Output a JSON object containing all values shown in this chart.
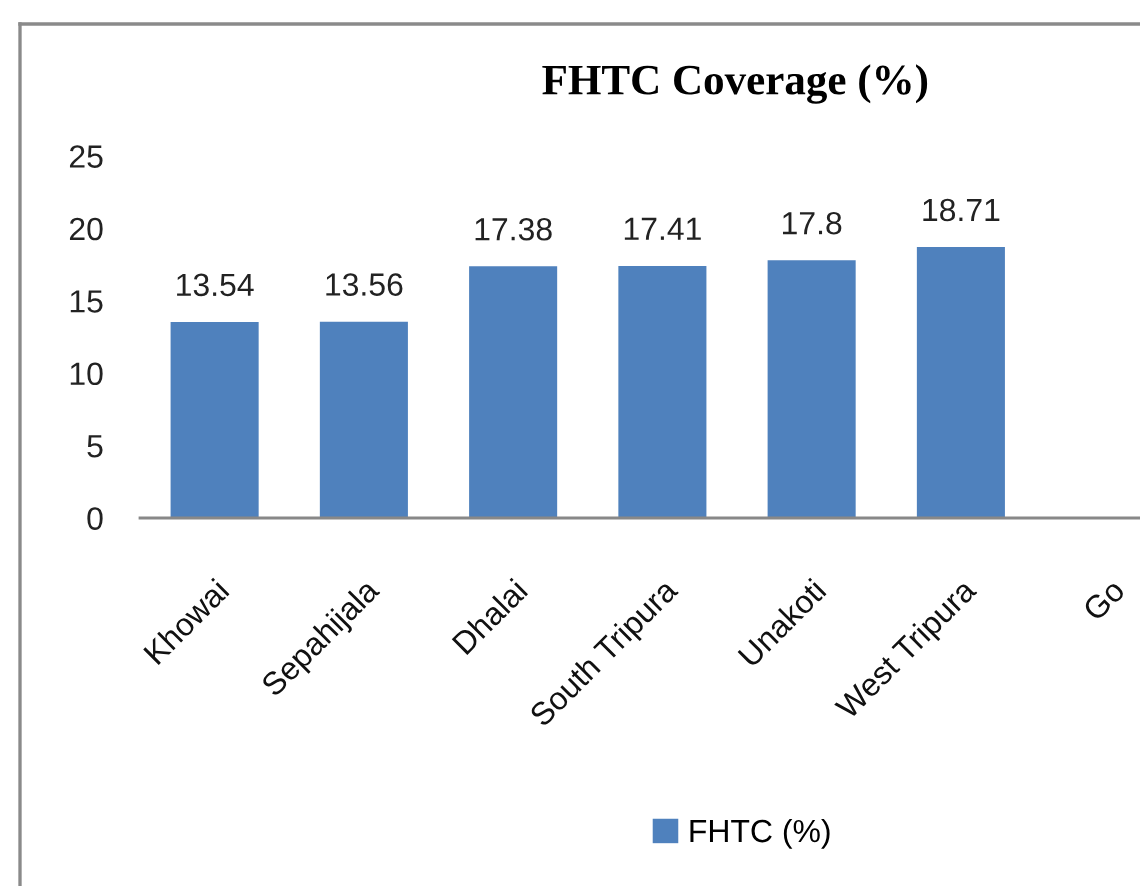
{
  "chart_data": {
    "type": "bar",
    "title": "FHTC Coverage (%)",
    "categories": [
      "Khowai",
      "Sepahijala",
      "Dhalai",
      "South Tripura",
      "Unakoti",
      "West Tripura",
      "Go"
    ],
    "series": [
      {
        "name": "FHTC (%)",
        "color": "#4f81bd",
        "values": [
          13.54,
          13.56,
          17.38,
          17.41,
          17.8,
          18.71,
          null
        ]
      }
    ],
    "ylim": [
      0,
      25
    ],
    "yticks": [
      0,
      5,
      10,
      15,
      20,
      25
    ],
    "data_labels": true,
    "legend": "bottom"
  }
}
